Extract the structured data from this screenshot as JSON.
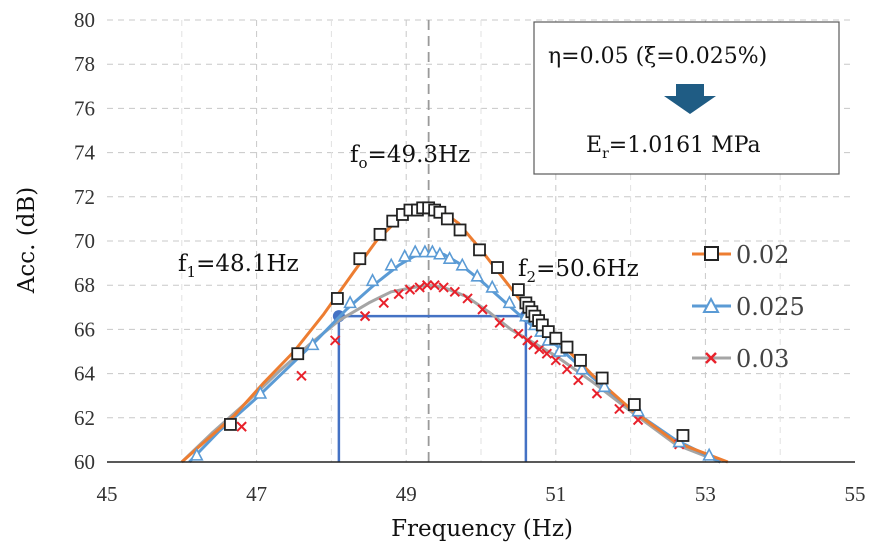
{
  "chart_data": {
    "type": "line",
    "xlabel": "Frequency (Hz)",
    "ylabel": "Acc. (dB)",
    "xlim": [
      45,
      55
    ],
    "ylim": [
      60,
      80
    ],
    "x_ticks": [
      45,
      47,
      49,
      51,
      53,
      55
    ],
    "y_ticks": [
      60,
      62,
      64,
      66,
      68,
      70,
      72,
      74,
      76,
      78,
      80
    ],
    "x_tick_labels": [
      "45",
      "47",
      "49",
      "51",
      "53",
      "55"
    ],
    "y_tick_labels": [
      "60",
      "62",
      "64",
      "66",
      "68",
      "70",
      "72",
      "74",
      "76",
      "78",
      "80"
    ],
    "grid": true,
    "legend_position": "right",
    "series": [
      {
        "name": "0.02",
        "color": "#ED7D31",
        "marker": "square",
        "marker_color": "#222222",
        "line_x": [
          46.0,
          46.3,
          46.7,
          47.1,
          47.5,
          47.9,
          48.3,
          48.6,
          48.9,
          49.1,
          49.3,
          49.5,
          49.7,
          50.0,
          50.3,
          50.6,
          51.0,
          51.5,
          52.0,
          52.6,
          53.3
        ],
        "line_y": [
          60.0,
          60.9,
          62.1,
          63.6,
          65.0,
          66.7,
          68.6,
          70.0,
          71.0,
          71.4,
          71.5,
          71.3,
          70.8,
          69.6,
          68.3,
          67.0,
          65.6,
          63.9,
          62.4,
          60.9,
          60.0
        ],
        "marker_x": [
          46.65,
          47.55,
          48.08,
          48.38,
          48.65,
          48.82,
          48.95,
          49.05,
          49.15,
          49.22,
          49.3,
          49.38,
          49.45,
          49.55,
          49.72,
          49.98,
          50.22,
          50.5,
          50.6,
          50.64,
          50.68,
          50.72,
          50.77,
          50.82,
          50.9,
          51.0,
          51.15,
          51.33,
          51.62,
          52.05,
          52.7
        ],
        "marker_y": [
          61.7,
          64.9,
          67.4,
          69.2,
          70.3,
          70.9,
          71.2,
          71.4,
          71.4,
          71.5,
          71.5,
          71.4,
          71.3,
          71.0,
          70.5,
          69.6,
          68.8,
          67.8,
          67.2,
          67.0,
          66.8,
          66.6,
          66.4,
          66.2,
          65.9,
          65.6,
          65.2,
          64.6,
          63.8,
          62.6,
          61.2
        ]
      },
      {
        "name": "0.025",
        "color": "#5B9BD5",
        "marker": "triangle",
        "marker_color": "#5B9BD5",
        "line_x": [
          46.1,
          46.5,
          47.0,
          47.4,
          47.8,
          48.2,
          48.6,
          48.9,
          49.1,
          49.3,
          49.5,
          49.7,
          50.0,
          50.3,
          50.6,
          51.0,
          51.5,
          52.0,
          52.6,
          53.2
        ],
        "line_y": [
          60.0,
          61.4,
          62.9,
          64.2,
          65.5,
          66.9,
          68.1,
          68.9,
          69.3,
          69.5,
          69.4,
          69.0,
          68.2,
          67.3,
          66.4,
          65.3,
          63.8,
          62.4,
          61.0,
          60.0
        ],
        "marker_x": [
          46.2,
          47.05,
          47.75,
          48.25,
          48.55,
          48.8,
          48.98,
          49.12,
          49.25,
          49.35,
          49.45,
          49.58,
          49.75,
          49.95,
          50.15,
          50.38,
          50.6,
          50.72,
          50.8,
          50.9,
          51.05,
          51.35,
          51.65,
          52.1,
          52.65,
          53.05
        ],
        "marker_y": [
          60.3,
          63.1,
          65.3,
          67.2,
          68.2,
          68.9,
          69.3,
          69.5,
          69.5,
          69.5,
          69.4,
          69.2,
          68.9,
          68.4,
          67.9,
          67.2,
          66.6,
          66.2,
          65.9,
          65.5,
          65.0,
          64.2,
          63.4,
          62.3,
          60.9,
          60.3
        ]
      },
      {
        "name": "0.03",
        "color": "#A5A5A5",
        "marker": "x",
        "marker_color": "#E8212B",
        "line_x": [
          46.0,
          46.4,
          46.9,
          47.3,
          47.7,
          48.1,
          48.5,
          48.8,
          49.1,
          49.3,
          49.5,
          49.8,
          50.1,
          50.4,
          50.7,
          51.0,
          51.5,
          52.0,
          52.6,
          53.2
        ],
        "line_y": [
          60.0,
          61.3,
          62.8,
          64.1,
          65.3,
          66.4,
          67.2,
          67.7,
          67.9,
          68.0,
          67.9,
          67.5,
          66.8,
          66.0,
          65.4,
          64.8,
          63.6,
          62.3,
          60.8,
          60.0
        ],
        "marker_x": [
          46.8,
          47.6,
          48.05,
          48.45,
          48.7,
          48.9,
          49.05,
          49.18,
          49.28,
          49.38,
          49.5,
          49.65,
          49.82,
          50.02,
          50.25,
          50.5,
          50.62,
          50.7,
          50.78,
          50.88,
          51.0,
          51.15,
          51.3,
          51.55,
          51.85,
          52.1,
          52.65
        ],
        "marker_y": [
          61.6,
          63.9,
          65.5,
          66.6,
          67.2,
          67.6,
          67.8,
          67.9,
          68.0,
          68.0,
          67.9,
          67.7,
          67.4,
          66.9,
          66.3,
          65.8,
          65.5,
          65.3,
          65.1,
          64.9,
          64.6,
          64.2,
          63.7,
          63.1,
          62.4,
          61.9,
          60.8
        ]
      }
    ],
    "reference_lines": {
      "color": "#4472C4",
      "f1": 48.1,
      "f2": 50.6,
      "half_power_level": 66.6,
      "center_dashed_x": 49.3
    },
    "annotations": {
      "f0": {
        "main": "f",
        "sub": "o",
        "rest": "=49.3Hz"
      },
      "f1": {
        "main": "f",
        "sub": "1",
        "rest": "=48.1Hz"
      },
      "f2": {
        "main": "f",
        "sub": "2",
        "rest": "=50.6Hz"
      }
    },
    "info_box": {
      "line1": "η=0.05 (ξ=0.025%)",
      "arrow_color": "#1F5C84",
      "line2_main": "E",
      "line2_sub": "r",
      "line2_rest": "=1.0161 MPa"
    }
  }
}
